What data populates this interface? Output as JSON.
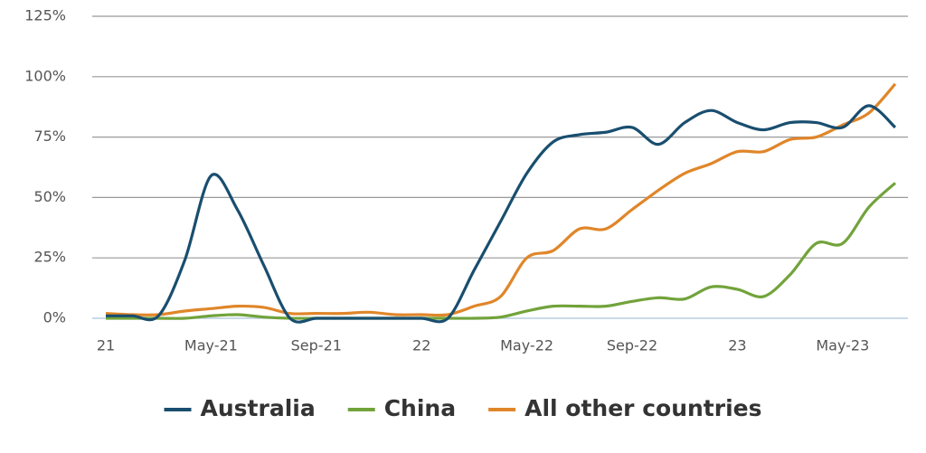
{
  "chart_data": {
    "type": "line",
    "categories": [
      "21",
      null,
      null,
      null,
      "May-21",
      null,
      null,
      null,
      "Sep-21",
      null,
      null,
      null,
      "22",
      null,
      null,
      null,
      "May-22",
      null,
      null,
      null,
      "Sep-22",
      null,
      null,
      null,
      "23",
      null,
      null,
      null,
      "May-23",
      null,
      null
    ],
    "series": [
      {
        "name": "Australia",
        "color": "#194e6f",
        "values": [
          1,
          1,
          1,
          24,
          59,
          45,
          22,
          0,
          0,
          0,
          0,
          0,
          0,
          0,
          20,
          40,
          60,
          73,
          76,
          77,
          79,
          72,
          81,
          86,
          81,
          78,
          81,
          81,
          79,
          88,
          79
        ]
      },
      {
        "name": "China",
        "color": "#72a33b",
        "values": [
          0,
          0,
          0,
          0,
          1,
          1.5,
          0.5,
          0,
          0,
          0,
          0,
          0,
          0,
          0,
          0,
          0.5,
          3,
          5,
          5,
          5,
          7,
          8.5,
          8,
          13,
          12,
          9,
          18,
          31,
          31,
          46,
          56
        ]
      },
      {
        "name": "All other countries",
        "color": "#e0862a",
        "values": [
          2,
          1.5,
          1.5,
          3,
          4,
          5,
          4.5,
          2,
          2,
          2,
          2.5,
          1.5,
          1.5,
          1.5,
          5,
          9,
          25,
          28,
          37,
          37,
          45,
          53,
          60,
          64,
          69,
          69,
          74,
          75,
          80,
          85,
          97
        ]
      }
    ],
    "ylim": [
      0,
      125
    ],
    "yticks": [
      {
        "value": 0,
        "label": "0%"
      },
      {
        "value": 25,
        "label": "25%"
      },
      {
        "value": 50,
        "label": "50%"
      },
      {
        "value": 75,
        "label": "75%"
      },
      {
        "value": 100,
        "label": "100%"
      },
      {
        "value": 125,
        "label": "125%"
      }
    ],
    "grid": true,
    "legend": "bottom"
  }
}
